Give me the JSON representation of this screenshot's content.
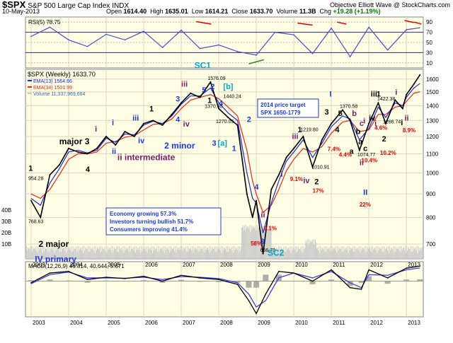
{
  "header": {
    "ticker": "$SPX",
    "name": "S&P 500 Large Cap Index",
    "exchange": "INDX",
    "date": "10-May-2013",
    "brand": "Objective Elliott Wave @ StockCharts.com",
    "open_label": "Open",
    "open": "1614.40",
    "high_label": "High",
    "high": "1635.01",
    "low_label": "Low",
    "low": "1614.21",
    "close_label": "Close",
    "close": "1633.70",
    "volume_label": "Volume",
    "volume": "11.3B",
    "chg_label": "Chg",
    "chg": "+19.28 (+1.19%)"
  },
  "colors": {
    "panel_bg": "#fffde4",
    "price": "#000000",
    "ema13": "#1c2bd6",
    "ema34": "#e8281c",
    "volume": "#c9c9c9",
    "rsi": "#4a4ac8",
    "macd": "#000000",
    "signal": "#3a3af0",
    "histogram": "#9a9a9a",
    "wave_black": "#000000",
    "wave_blue": "#1c3bd6",
    "wave_purple": "#7a1a6e",
    "wave_red": "#e00000",
    "wave_cyan": "#00a6c8",
    "trendline_red": "#e00000",
    "trendline_green": "#2a8a2a"
  },
  "chart_data": [
    {
      "type": "line",
      "panel": "RSI",
      "legend": "RSI(5) 78.75",
      "ylim": [
        0,
        100
      ],
      "y_ticks": [
        10,
        30,
        50,
        70,
        90
      ],
      "overbought": 70,
      "oversold": 30,
      "x": [
        2003,
        2003.5,
        2004,
        2004.5,
        2005,
        2005.5,
        2006,
        2006.5,
        2007,
        2007.5,
        2008,
        2008.5,
        2009,
        2009.5,
        2010,
        2010.5,
        2011,
        2011.5,
        2012,
        2012.5,
        2013,
        2013.35
      ],
      "series": [
        {
          "name": "RSI(5)",
          "values": [
            62,
            80,
            55,
            42,
            66,
            55,
            72,
            40,
            74,
            38,
            45,
            32,
            25,
            70,
            65,
            28,
            78,
            22,
            80,
            35,
            75,
            78.75
          ]
        }
      ]
    },
    {
      "type": "line",
      "panel": "Price",
      "log_scale": true,
      "legend": [
        "$SPX (Weekly) 1633.70",
        "EMA(13) 1564.66",
        "EMA(34) 1501.99",
        "Volume 11,337,969,664"
      ],
      "ylim": [
        650,
        1680
      ],
      "y_ticks": [
        700,
        800,
        900,
        1000,
        1100,
        1200,
        1300,
        1400,
        1500,
        1600
      ],
      "volume_axis_labels": [
        "40B",
        "30B",
        "20B",
        "10B"
      ],
      "x": [
        2003.0,
        2003.25,
        2003.5,
        2003.75,
        2004.0,
        2004.25,
        2004.5,
        2004.75,
        2005.0,
        2005.25,
        2005.5,
        2005.75,
        2006.0,
        2006.25,
        2006.5,
        2006.75,
        2007.0,
        2007.25,
        2007.5,
        2007.78,
        2008.0,
        2008.25,
        2008.5,
        2008.75,
        2008.9,
        2009.0,
        2009.18,
        2009.4,
        2009.6,
        2009.8,
        2010.0,
        2010.25,
        2010.5,
        2010.75,
        2011.0,
        2011.3,
        2011.5,
        2011.75,
        2012.0,
        2012.25,
        2012.45,
        2012.7,
        2012.9,
        2013.0,
        2013.2,
        2013.36
      ],
      "series": [
        {
          "name": "$SPX (Weekly)",
          "values": [
            870,
            800,
            990,
            1040,
            1130,
            1110,
            1100,
            1130,
            1200,
            1150,
            1230,
            1200,
            1280,
            1300,
            1270,
            1340,
            1420,
            1490,
            1460,
            1576,
            1380,
            1320,
            1270,
            900,
            800,
            870,
            667,
            920,
            990,
            1080,
            1130,
            1200,
            1030,
            1180,
            1280,
            1370,
            1300,
            1120,
            1280,
            1420,
            1280,
            1440,
            1380,
            1480,
            1560,
            1633.7
          ]
        },
        {
          "name": "EMA(13)",
          "values": [
            880,
            850,
            950,
            1020,
            1110,
            1120,
            1105,
            1120,
            1190,
            1165,
            1215,
            1210,
            1270,
            1295,
            1280,
            1330,
            1410,
            1470,
            1470,
            1530,
            1420,
            1350,
            1300,
            1000,
            880,
            860,
            740,
            860,
            960,
            1060,
            1110,
            1180,
            1080,
            1160,
            1260,
            1330,
            1310,
            1180,
            1250,
            1390,
            1320,
            1420,
            1400,
            1460,
            1530,
            1564.66
          ]
        },
        {
          "name": "EMA(34)",
          "values": [
            900,
            880,
            920,
            990,
            1070,
            1100,
            1100,
            1110,
            1160,
            1170,
            1195,
            1205,
            1240,
            1275,
            1280,
            1310,
            1380,
            1440,
            1460,
            1480,
            1450,
            1390,
            1330,
            1120,
            960,
            900,
            820,
            850,
            920,
            1010,
            1070,
            1130,
            1110,
            1140,
            1220,
            1290,
            1300,
            1230,
            1240,
            1340,
            1340,
            1390,
            1400,
            1430,
            1490,
            1501.99
          ]
        }
      ],
      "point_labels": [
        {
          "text": "954.28",
          "x": 2003.0,
          "y": 954.28
        },
        {
          "text": "768.63",
          "x": 2003.0,
          "y": 768.63
        },
        {
          "text": "1576.09",
          "x": 2007.78,
          "y": 1576.09
        },
        {
          "text": "1440.24",
          "x": 2008.2,
          "y": 1440.24
        },
        {
          "text": "1370.60",
          "x": 2007.7,
          "y": 1370.6
        },
        {
          "text": "1270.05",
          "x": 2008.0,
          "y": 1270.05
        },
        {
          "text": "666.79",
          "x": 2009.18,
          "y": 666.79
        },
        {
          "text": "1219.80",
          "x": 2010.25,
          "y": 1219.8
        },
        {
          "text": "1010.91",
          "x": 2010.55,
          "y": 1010.91
        },
        {
          "text": "1370.58",
          "x": 2011.3,
          "y": 1370.58
        },
        {
          "text": "1074.77",
          "x": 2011.77,
          "y": 1074.77
        },
        {
          "text": "1422.38",
          "x": 2012.3,
          "y": 1422.38
        },
        {
          "text": "1266.74",
          "x": 2012.45,
          "y": 1266.74
        }
      ],
      "wave_labels": [
        {
          "text": "1",
          "x": 2002.93,
          "y": 1010,
          "color": "wave_black"
        },
        {
          "text": "major 3",
          "x": 2003.75,
          "y": 1155,
          "color": "wave_black"
        },
        {
          "text": "4",
          "x": 2004.45,
          "y": 1005,
          "color": "wave_black"
        },
        {
          "text": "i",
          "x": 2004.7,
          "y": 1230,
          "color": "wave_purple"
        },
        {
          "text": "ii intermediate",
          "x": 2005.3,
          "y": 1065,
          "color": "wave_purple"
        },
        {
          "text": "i",
          "x": 2005.15,
          "y": 1270,
          "color": "wave_blue"
        },
        {
          "text": "ii",
          "x": 2005.15,
          "y": 1100,
          "color": "wave_blue"
        },
        {
          "text": "iii",
          "x": 2005.7,
          "y": 1300,
          "color": "wave_blue"
        },
        {
          "text": "iv",
          "x": 2005.85,
          "y": 1160,
          "color": "wave_blue"
        },
        {
          "text": "1",
          "x": 2006.15,
          "y": 1360,
          "color": "wave_black"
        },
        {
          "text": "2 minor",
          "x": 2006.55,
          "y": 1130,
          "color": "wave_blue"
        },
        {
          "text": "3",
          "x": 2006.85,
          "y": 1430,
          "color": "wave_blue"
        },
        {
          "text": "4",
          "x": 2006.85,
          "y": 1290,
          "color": "wave_blue"
        },
        {
          "text": "iii",
          "x": 2007.0,
          "y": 1540,
          "color": "wave_purple"
        },
        {
          "text": "iv",
          "x": 2007.05,
          "y": 1260,
          "color": "wave_purple"
        },
        {
          "text": "SC1",
          "x": 2007.35,
          "y": 1690,
          "color": "wave_cyan"
        },
        {
          "text": "5",
          "x": 2007.55,
          "y": 1495,
          "color": "wave_blue"
        },
        {
          "text": "2",
          "x": 2007.78,
          "y": 1520,
          "color": "wave_blue"
        },
        {
          "text": "[b]",
          "x": 2008.12,
          "y": 1520,
          "color": "wave_cyan"
        },
        {
          "text": "1",
          "x": 2007.7,
          "y": 1420,
          "color": "wave_black"
        },
        {
          "text": "4",
          "x": 2008.0,
          "y": 1400,
          "color": "wave_blue"
        },
        {
          "text": "3",
          "x": 2007.82,
          "y": 1145,
          "color": "wave_blue"
        },
        {
          "text": "[a]",
          "x": 2007.97,
          "y": 1145,
          "color": "wave_cyan"
        },
        {
          "text": "1",
          "x": 2008.35,
          "y": 1115,
          "color": "wave_blue"
        },
        {
          "text": "2",
          "x": 2008.75,
          "y": 1290,
          "color": "wave_blue"
        },
        {
          "text": "4",
          "x": 2008.95,
          "y": 920,
          "color": "wave_blue"
        },
        {
          "text": "i",
          "x": 2009.65,
          "y": 980,
          "color": "wave_purple"
        },
        {
          "text": "ii",
          "x": 2009.12,
          "y": 800,
          "color": "wave_purple"
        },
        {
          "text": "iii",
          "x": 2009.95,
          "y": 1185,
          "color": "wave_purple"
        },
        {
          "text": "iv",
          "x": 2010.25,
          "y": 950,
          "color": "wave_purple"
        },
        {
          "text": "1",
          "x": 2010.1,
          "y": 1225,
          "color": "wave_black"
        },
        {
          "text": "3",
          "x": 2010.82,
          "y": 1340,
          "color": "wave_black"
        },
        {
          "text": "2",
          "x": 2010.55,
          "y": 945,
          "color": "wave_black"
        },
        {
          "text": "I",
          "x": 2010.95,
          "y": 1465,
          "color": "wave_blue"
        },
        {
          "text": "5",
          "x": 2011.18,
          "y": 1330,
          "color": "wave_black"
        },
        {
          "text": "b",
          "x": 2011.55,
          "y": 1330,
          "color": "wave_purple"
        },
        {
          "text": "4",
          "x": 2011.1,
          "y": 1225,
          "color": "wave_black"
        },
        {
          "text": "c",
          "x": 2011.75,
          "y": 1265,
          "color": "wave_purple"
        },
        {
          "text": "b",
          "x": 2011.65,
          "y": 1215,
          "color": "wave_black"
        },
        {
          "text": "a",
          "x": 2011.72,
          "y": 1155,
          "color": "wave_black"
        },
        {
          "text": "c",
          "x": 2011.85,
          "y": 1115,
          "color": "wave_black"
        },
        {
          "text": "a",
          "x": 2011.48,
          "y": 1100,
          "color": "wave_black"
        },
        {
          "text": "ii",
          "x": 2011.75,
          "y": 1040,
          "color": "wave_purple"
        },
        {
          "text": "II",
          "x": 2011.85,
          "y": 895,
          "color": "wave_blue"
        },
        {
          "text": "i",
          "x": 2011.85,
          "y": 1280,
          "color": "wave_purple"
        },
        {
          "text": "iii",
          "x": 2012.05,
          "y": 1465,
          "color": "wave_black"
        },
        {
          "text": "1",
          "x": 2012.2,
          "y": 1465,
          "color": "wave_black"
        },
        {
          "text": "iv",
          "x": 2012.0,
          "y": 1300,
          "color": "wave_black"
        },
        {
          "text": "i",
          "x": 2012.15,
          "y": 1265,
          "color": "wave_purple"
        },
        {
          "text": "2",
          "x": 2012.35,
          "y": 1170,
          "color": "wave_black"
        },
        {
          "text": "i",
          "x": 2012.7,
          "y": 1480,
          "color": "wave_purple"
        },
        {
          "text": "ii",
          "x": 2012.95,
          "y": 1300,
          "color": "wave_purple"
        },
        {
          "text": "i",
          "x": 2012.85,
          "y": 1270,
          "color": "wave_black"
        },
        {
          "text": "3",
          "x": 2009.1,
          "y": 700,
          "color": "wave_blue"
        },
        {
          "text": "SC2",
          "x": 2009.3,
          "y": 660,
          "color": "wave_cyan"
        },
        {
          "text": "2 major",
          "x": 2003.2,
          "y": 690,
          "color": "wave_black"
        },
        {
          "text": "IV primary",
          "x": 2003.1,
          "y": 640,
          "color": "wave_blue"
        }
      ],
      "percent_labels": [
        {
          "text": "58%",
          "x": 2008.85,
          "y": 695
        },
        {
          "text": "9.1%",
          "x": 2009.2,
          "y": 750
        },
        {
          "text": "9.1%",
          "x": 2009.9,
          "y": 960
        },
        {
          "text": "17%",
          "x": 2010.5,
          "y": 905
        },
        {
          "text": "7.4%",
          "x": 2010.9,
          "y": 1115
        },
        {
          "text": "4.4%",
          "x": 2011.2,
          "y": 1085
        },
        {
          "text": "10.4%",
          "x": 2011.8,
          "y": 1055
        },
        {
          "text": "22%",
          "x": 2011.75,
          "y": 845
        },
        {
          "text": "10.2%",
          "x": 2012.3,
          "y": 1095
        },
        {
          "text": "4.6%",
          "x": 2012.15,
          "y": 1240
        },
        {
          "text": "8.9%",
          "x": 2012.9,
          "y": 1225
        }
      ],
      "boxes": [
        {
          "lines": [
            "2014 price target",
            "SPX 1650-1779"
          ]
        },
        {
          "lines": [
            "Economy growing 57.3%",
            "Investors turning bullish 51.7%",
            "Consumers improving 41.4%"
          ]
        }
      ]
    },
    {
      "type": "line",
      "panel": "MACD",
      "legend": "MACD(12,26,9) 46.314, 40.644, 5.671",
      "x": [
        2003,
        2003.5,
        2004,
        2004.5,
        2005,
        2005.5,
        2006,
        2006.5,
        2007,
        2007.5,
        2008,
        2008.5,
        2008.8,
        2009.0,
        2009.25,
        2009.6,
        2010,
        2010.5,
        2011,
        2011.5,
        2011.8,
        2012,
        2012.5,
        2013,
        2013.36
      ],
      "series": [
        {
          "name": "MACD",
          "values": [
            -5,
            25,
            30,
            5,
            12,
            8,
            15,
            0,
            18,
            10,
            5,
            -10,
            -60,
            -100,
            -40,
            30,
            25,
            0,
            35,
            -20,
            -25,
            35,
            10,
            40,
            46.314
          ]
        },
        {
          "name": "Signal",
          "values": [
            -8,
            20,
            28,
            10,
            10,
            9,
            12,
            5,
            14,
            12,
            8,
            -5,
            -40,
            -80,
            -60,
            10,
            25,
            10,
            30,
            -5,
            -20,
            20,
            18,
            35,
            40.644
          ]
        },
        {
          "name": "Histogram",
          "values": [
            3,
            5,
            2,
            -5,
            2,
            -1,
            3,
            -5,
            4,
            -2,
            -3,
            -5,
            -20,
            -20,
            20,
            20,
            0,
            -10,
            5,
            -15,
            -5,
            15,
            -8,
            5,
            5.671
          ]
        }
      ]
    }
  ],
  "x_axis": {
    "year_labels": [
      "2003",
      "2004",
      "2005",
      "2006",
      "2007",
      "2008",
      "2009",
      "2010",
      "2011",
      "2012",
      "2013"
    ]
  }
}
